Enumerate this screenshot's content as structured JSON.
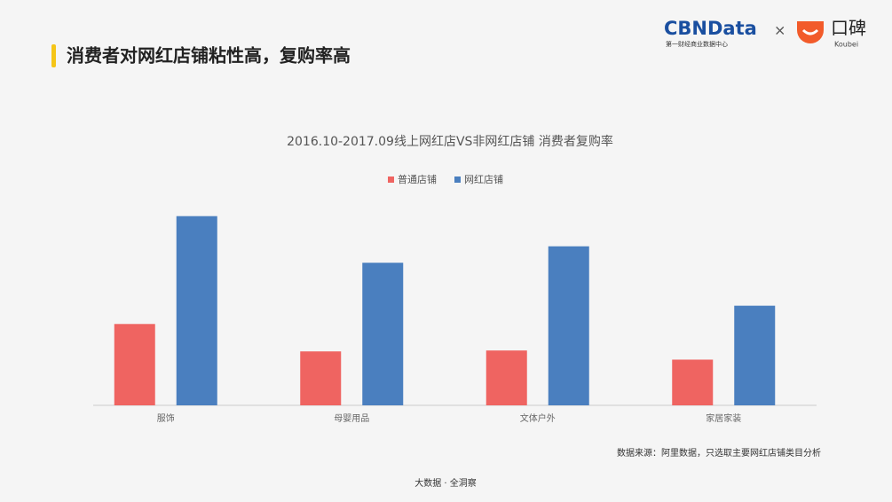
{
  "header": {
    "title": "消费者对网红店铺粘性高，复购率高",
    "brand": "CBNData",
    "brand_sub": "第一财经商业数据中心",
    "cross": "×",
    "partner": "口碑",
    "partner_sub": "Koubei"
  },
  "chart_data": {
    "type": "bar",
    "title": "2016.10-2017.09线上网红店VS非网红店铺 消费者复购率",
    "categories": [
      "服饰",
      "母婴用品",
      "文体户外",
      "家居家装"
    ],
    "series": [
      {
        "name": "普通店铺",
        "color": "#ef6461",
        "values": [
          89,
          59,
          60,
          50
        ]
      },
      {
        "name": "网红店铺",
        "color": "#4a7fbf",
        "values": [
          207,
          156,
          174,
          109
        ]
      }
    ],
    "ylim": [
      0,
      230
    ]
  },
  "footer": {
    "source": "数据来源：阿里数据，只选取主要网红店铺类目分析",
    "tagline": "大数据 · 全洞察"
  }
}
